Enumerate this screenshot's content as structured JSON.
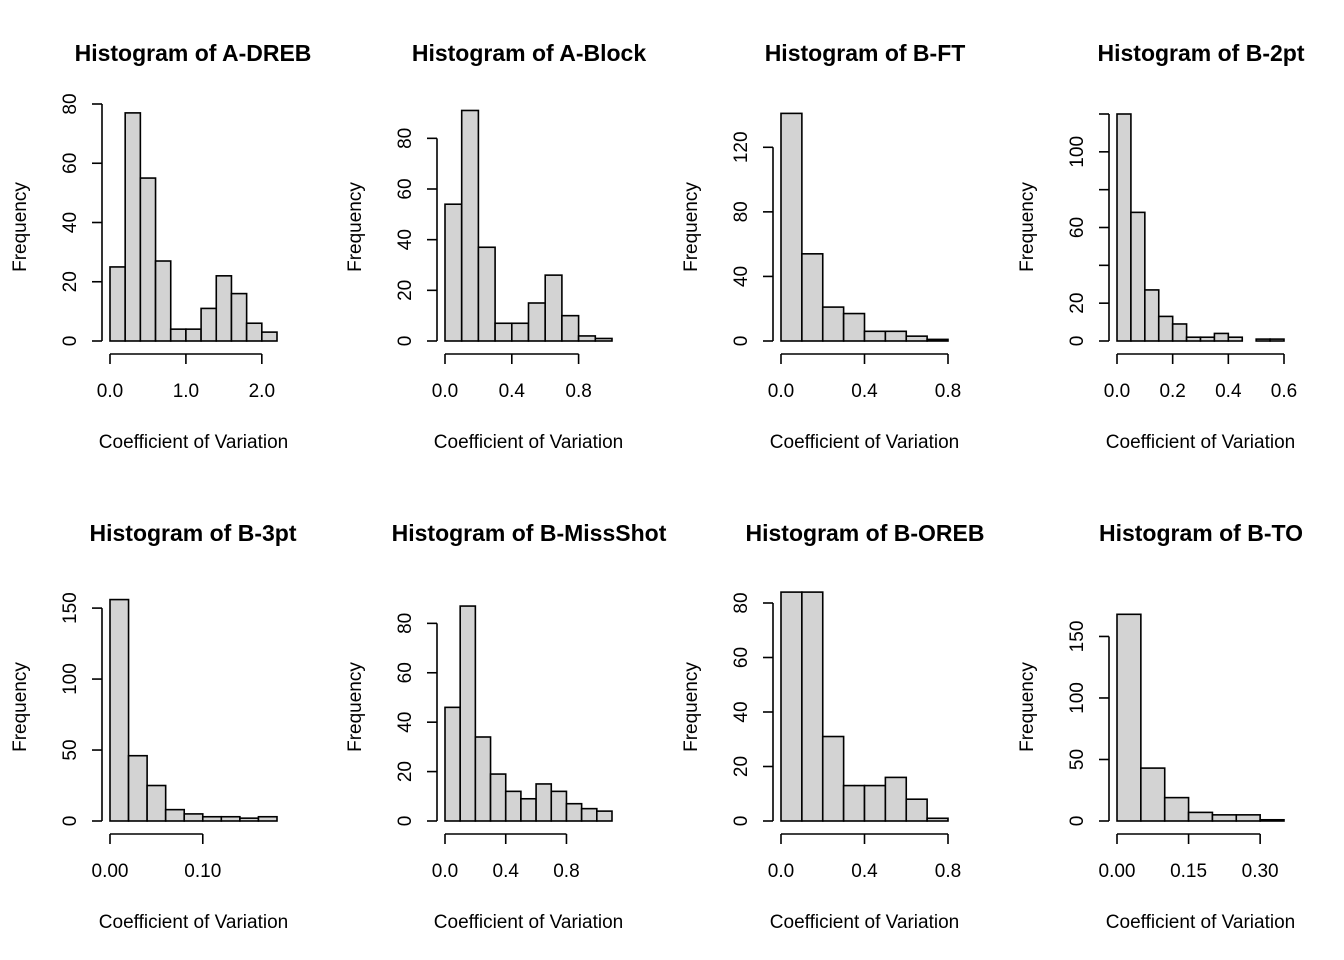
{
  "figure": {
    "bar_color": "#d3d3d3",
    "outline_color": "#000000",
    "background": "#ffffff"
  },
  "chart_data": [
    {
      "type": "bar",
      "title": "Histogram of A-DREB",
      "xlabel": "Coefficient of Variation",
      "ylabel": "Frequency",
      "xlim": [
        0,
        2.2
      ],
      "ylim": [
        0,
        80
      ],
      "bin_edges": [
        0,
        0.2,
        0.4,
        0.6,
        0.8,
        1.0,
        1.2,
        1.4,
        1.6,
        1.8,
        2.0,
        2.2
      ],
      "values": [
        25,
        77,
        55,
        27,
        4,
        4,
        11,
        22,
        16,
        6,
        3
      ],
      "xticks": [
        0,
        1,
        2
      ],
      "xtick_labels": [
        "0.0",
        "1.0",
        "2.0"
      ],
      "yticks": [
        0,
        20,
        40,
        60,
        80
      ],
      "ytick_labels": [
        "0",
        "20",
        "40",
        "60",
        "80"
      ],
      "grid": false
    },
    {
      "type": "bar",
      "title": "Histogram of A-Block",
      "xlabel": "Coefficient of Variation",
      "ylabel": "Frequency",
      "xlim": [
        0,
        1.0
      ],
      "ylim": [
        0,
        90
      ],
      "bin_edges": [
        0,
        0.1,
        0.2,
        0.3,
        0.4,
        0.5,
        0.6,
        0.7,
        0.8,
        0.9,
        1.0
      ],
      "values": [
        54,
        91,
        37,
        7,
        7,
        15,
        26,
        10,
        2,
        1
      ],
      "xticks": [
        0,
        0.4,
        0.8
      ],
      "xtick_labels": [
        "0.0",
        "0.4",
        "0.8"
      ],
      "yticks": [
        0,
        20,
        40,
        60,
        80
      ],
      "ytick_labels": [
        "0",
        "20",
        "40",
        "60",
        "80"
      ],
      "grid": false
    },
    {
      "type": "bar",
      "title": "Histogram of B-FT",
      "xlabel": "Coefficient of Variation",
      "ylabel": "Frequency",
      "xlim": [
        0,
        0.8
      ],
      "ylim": [
        0,
        140
      ],
      "bin_edges": [
        0,
        0.1,
        0.2,
        0.3,
        0.4,
        0.5,
        0.6,
        0.7,
        0.8
      ],
      "values": [
        141,
        54,
        21,
        17,
        6,
        6,
        3,
        1
      ],
      "xticks": [
        0,
        0.4,
        0.8
      ],
      "xtick_labels": [
        "0.0",
        "0.4",
        "0.8"
      ],
      "yticks": [
        0,
        40,
        80,
        120
      ],
      "ytick_labels": [
        "0",
        "40",
        "80",
        "120"
      ],
      "grid": false
    },
    {
      "type": "bar",
      "title": "Histogram of B-2pt",
      "xlabel": "Coefficient of Variation",
      "ylabel": "Frequency",
      "xlim": [
        0,
        0.6
      ],
      "ylim": [
        0,
        120
      ],
      "bin_edges": [
        0,
        0.05,
        0.1,
        0.15,
        0.2,
        0.25,
        0.3,
        0.35,
        0.4,
        0.45,
        0.5,
        0.55,
        0.6
      ],
      "values": [
        120,
        68,
        27,
        13,
        9,
        2,
        2,
        4,
        2,
        0,
        1,
        1
      ],
      "xticks": [
        0,
        0.2,
        0.4,
        0.6
      ],
      "xtick_labels": [
        "0.0",
        "0.2",
        "0.4",
        "0.6"
      ],
      "yticks": [
        0,
        20,
        40,
        60,
        80,
        100,
        120
      ],
      "ytick_labels": [
        "0",
        "20",
        "",
        "60",
        "",
        "100",
        ""
      ],
      "grid": false
    },
    {
      "type": "bar",
      "title": "Histogram of B-3pt",
      "xlabel": "Coefficient of Variation",
      "ylabel": "Frequency",
      "xlim": [
        0,
        0.18
      ],
      "ylim": [
        0,
        155
      ],
      "bin_edges": [
        0,
        0.02,
        0.04,
        0.06,
        0.08,
        0.1,
        0.12,
        0.14,
        0.16,
        0.18
      ],
      "values": [
        156,
        46,
        25,
        8,
        5,
        3,
        3,
        2,
        3
      ],
      "xticks": [
        0,
        0.1
      ],
      "xtick_labels": [
        "0.00",
        "0.10"
      ],
      "yticks": [
        0,
        50,
        100,
        150
      ],
      "ytick_labels": [
        "0",
        "50",
        "100",
        "150"
      ],
      "grid": false
    },
    {
      "type": "bar",
      "title": "Histogram of B-MissShot",
      "xlabel": "Coefficient of Variation",
      "ylabel": "Frequency",
      "xlim": [
        0,
        1.1
      ],
      "ylim": [
        0,
        85
      ],
      "bin_edges": [
        0,
        0.1,
        0.2,
        0.3,
        0.4,
        0.5,
        0.6,
        0.7,
        0.8,
        0.9,
        1.0,
        1.1
      ],
      "values": [
        46,
        87,
        34,
        19,
        12,
        9,
        15,
        12,
        7,
        5,
        4
      ],
      "xticks": [
        0,
        0.4,
        0.8
      ],
      "xtick_labels": [
        "0.0",
        "0.4",
        "0.8"
      ],
      "yticks": [
        0,
        20,
        40,
        60,
        80
      ],
      "ytick_labels": [
        "0",
        "20",
        "40",
        "60",
        "80"
      ],
      "grid": false
    },
    {
      "type": "bar",
      "title": "Histogram of B-OREB",
      "xlabel": "Coefficient of Variation",
      "ylabel": "Frequency",
      "xlim": [
        0,
        0.8
      ],
      "ylim": [
        0,
        80
      ],
      "bin_edges": [
        0,
        0.1,
        0.2,
        0.3,
        0.4,
        0.5,
        0.6,
        0.7,
        0.8
      ],
      "values": [
        84,
        84,
        31,
        13,
        13,
        16,
        8,
        1
      ],
      "xticks": [
        0,
        0.4,
        0.8
      ],
      "xtick_labels": [
        "0.0",
        "0.4",
        "0.8"
      ],
      "yticks": [
        0,
        20,
        40,
        60,
        80
      ],
      "ytick_labels": [
        "0",
        "20",
        "40",
        "60",
        "80"
      ],
      "grid": false
    },
    {
      "type": "bar",
      "title": "Histogram of B-TO",
      "xlabel": "Coefficient of Variation",
      "ylabel": "Frequency",
      "xlim": [
        0,
        0.35
      ],
      "ylim": [
        0,
        165
      ],
      "bin_edges": [
        0,
        0.05,
        0.1,
        0.15,
        0.2,
        0.25,
        0.3,
        0.35
      ],
      "values": [
        168,
        43,
        19,
        7,
        5,
        5,
        1
      ],
      "xticks": [
        0,
        0.15,
        0.3
      ],
      "xtick_labels": [
        "0.00",
        "0.15",
        "0.30"
      ],
      "yticks": [
        0,
        50,
        100,
        150
      ],
      "ytick_labels": [
        "0",
        "50",
        "100",
        "150"
      ],
      "grid": false
    }
  ]
}
